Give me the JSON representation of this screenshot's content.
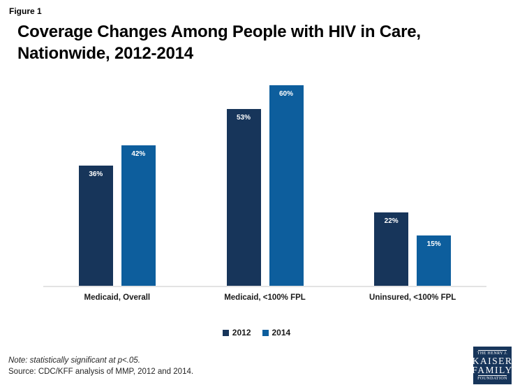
{
  "figure_label": "Figure 1",
  "title_line1": "Coverage Changes Among People with HIV in Care,",
  "title_line2": "Nationwide, 2012-2014",
  "chart_data": {
    "type": "bar",
    "title": "Coverage Changes Among People with HIV in Care, Nationwide, 2012-2014",
    "categories": [
      "Medicaid, Overall",
      "Medicaid, <100% FPL",
      "Uninsured, <100% FPL"
    ],
    "series": [
      {
        "name": "2012",
        "color": "#17355A",
        "values": [
          36,
          53,
          22
        ]
      },
      {
        "name": "2014",
        "color": "#0D5E9D",
        "values": [
          42,
          60,
          15
        ]
      }
    ],
    "value_label_suffix": "%",
    "xlabel": "",
    "ylabel": "",
    "ylim": [
      0,
      63
    ],
    "grid": false,
    "legend_position": "bottom"
  },
  "footer": {
    "note": "Note: statistically significant at p<.05.",
    "source": "Source: CDC/KFF analysis of MMP, 2012 and 2014."
  },
  "logo": {
    "line1": "THE HENRY J.",
    "line2": "KAISER",
    "line3": "FAMILY",
    "line4": "FOUNDATION",
    "background": "#17355A"
  },
  "colors": {
    "bar_2012": "#17355A",
    "bar_2014": "#0D5E9D",
    "axis_line": "#E3E3E3",
    "bar_value_text": "#FFFFFF"
  }
}
